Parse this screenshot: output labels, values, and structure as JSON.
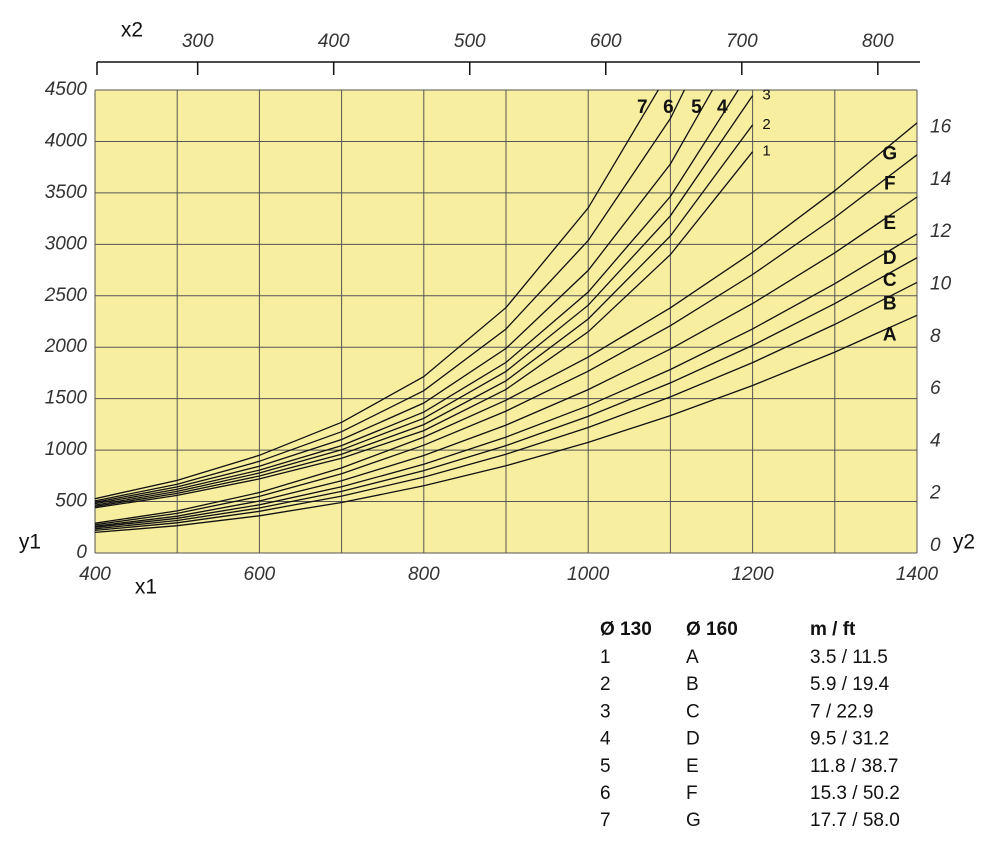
{
  "chart_data": {
    "type": "line",
    "x_label": "x1",
    "y_label": "y1",
    "x2_label": "x2",
    "y2_label": "y2",
    "x": [
      400,
      500,
      600,
      700,
      800,
      900,
      1000,
      1100,
      1200,
      1300,
      1400
    ],
    "xlim": [
      400,
      1400
    ],
    "xticks": [
      400,
      600,
      800,
      1000,
      1200,
      1400
    ],
    "xminor": [
      500,
      700,
      900,
      1100,
      1300
    ],
    "ylim": [
      0,
      4500
    ],
    "yticks": [
      0,
      500,
      1000,
      1500,
      2000,
      2500,
      3000,
      3500,
      4000,
      4500
    ],
    "x2lim": [
      226,
      831
    ],
    "x2ticks": [
      300,
      400,
      500,
      600,
      700,
      800
    ],
    "y2lim": [
      0,
      17.7
    ],
    "y2ticks": [
      0,
      2,
      4,
      6,
      8,
      10,
      12,
      14,
      16
    ],
    "grid": true,
    "background": "#f8ee9f",
    "series": [
      {
        "name": "1",
        "color": "#111111",
        "values": [
          440,
          560,
          720,
          920,
          1190,
          1590,
          2150,
          2900,
          3900,
          null,
          null
        ]
      },
      {
        "name": "2",
        "color": "#111111",
        "values": [
          453,
          579,
          748,
          960,
          1248,
          1674,
          2274,
          3081,
          4161,
          null,
          null
        ]
      },
      {
        "name": "3",
        "color": "#111111",
        "values": [
          466,
          599,
          778,
          1003,
          1309,
          1765,
          2408,
          3277,
          4446,
          null,
          null
        ]
      },
      {
        "name": "4",
        "color": "#111111",
        "values": [
          480,
          619,
          806,
          1044,
          1369,
          1852,
          2537,
          3466,
          4719,
          null,
          null
        ]
      },
      {
        "name": "5",
        "color": "#111111",
        "values": [
          493,
          642,
          844,
          1103,
          1458,
          1989,
          2747,
          3781,
          5187,
          null,
          null
        ]
      },
      {
        "name": "6",
        "color": "#111111",
        "values": [
          506,
          669,
          891,
          1179,
          1577,
          2177,
          3037,
          4223,
          5850,
          null,
          null
        ]
      },
      {
        "name": "7",
        "color": "#111111",
        "values": [
          528,
          706,
          950,
          1270,
          1714,
          2385,
          3354,
          4698,
          null,
          null,
          null
        ]
      },
      {
        "name": "A",
        "color": "#111111",
        "values": [
          200,
          265,
          362,
          491,
          653,
          848,
          1075,
          1335,
          1628,
          1953,
          2310
        ]
      },
      {
        "name": "B",
        "color": "#111111",
        "values": [
          220,
          294,
          405,
          553,
          738,
          960,
          1220,
          1517,
          1851,
          2222,
          2630
        ]
      },
      {
        "name": "C",
        "color": "#111111",
        "values": [
          235,
          316,
          437,
          599,
          801,
          1044,
          1328,
          1653,
          2018,
          2424,
          2870
        ]
      },
      {
        "name": "D",
        "color": "#111111",
        "values": [
          250,
          337,
          468,
          643,
          862,
          1126,
          1432,
          1783,
          2178,
          2617,
          3100
        ]
      },
      {
        "name": "E",
        "color": "#111111",
        "values": [
          260,
          358,
          505,
          702,
          948,
          1243,
          1588,
          1982,
          2425,
          2918,
          3460
        ]
      },
      {
        "name": "F",
        "color": "#111111",
        "values": [
          275,
          385,
          550,
          771,
          1048,
          1379,
          1767,
          2209,
          2707,
          3261,
          3870
        ]
      },
      {
        "name": "G",
        "color": "#111111",
        "values": [
          290,
          409,
          588,
          827,
          1126,
          1485,
          1904,
          2383,
          2922,
          3521,
          4180
        ]
      }
    ]
  },
  "table": {
    "columns": [
      "Ø 130",
      "Ø 160",
      "m / ft"
    ],
    "rows": [
      [
        "1",
        "A",
        "3.5 / 11.5"
      ],
      [
        "2",
        "B",
        "5.9 / 19.4"
      ],
      [
        "3",
        "C",
        "7 / 22.9"
      ],
      [
        "4",
        "D",
        "9.5 / 31.2"
      ],
      [
        "5",
        "E",
        "11.8 / 38.7"
      ],
      [
        "6",
        "F",
        "15.3 / 50.2"
      ],
      [
        "7",
        "G",
        "17.7 / 58.0"
      ]
    ]
  }
}
